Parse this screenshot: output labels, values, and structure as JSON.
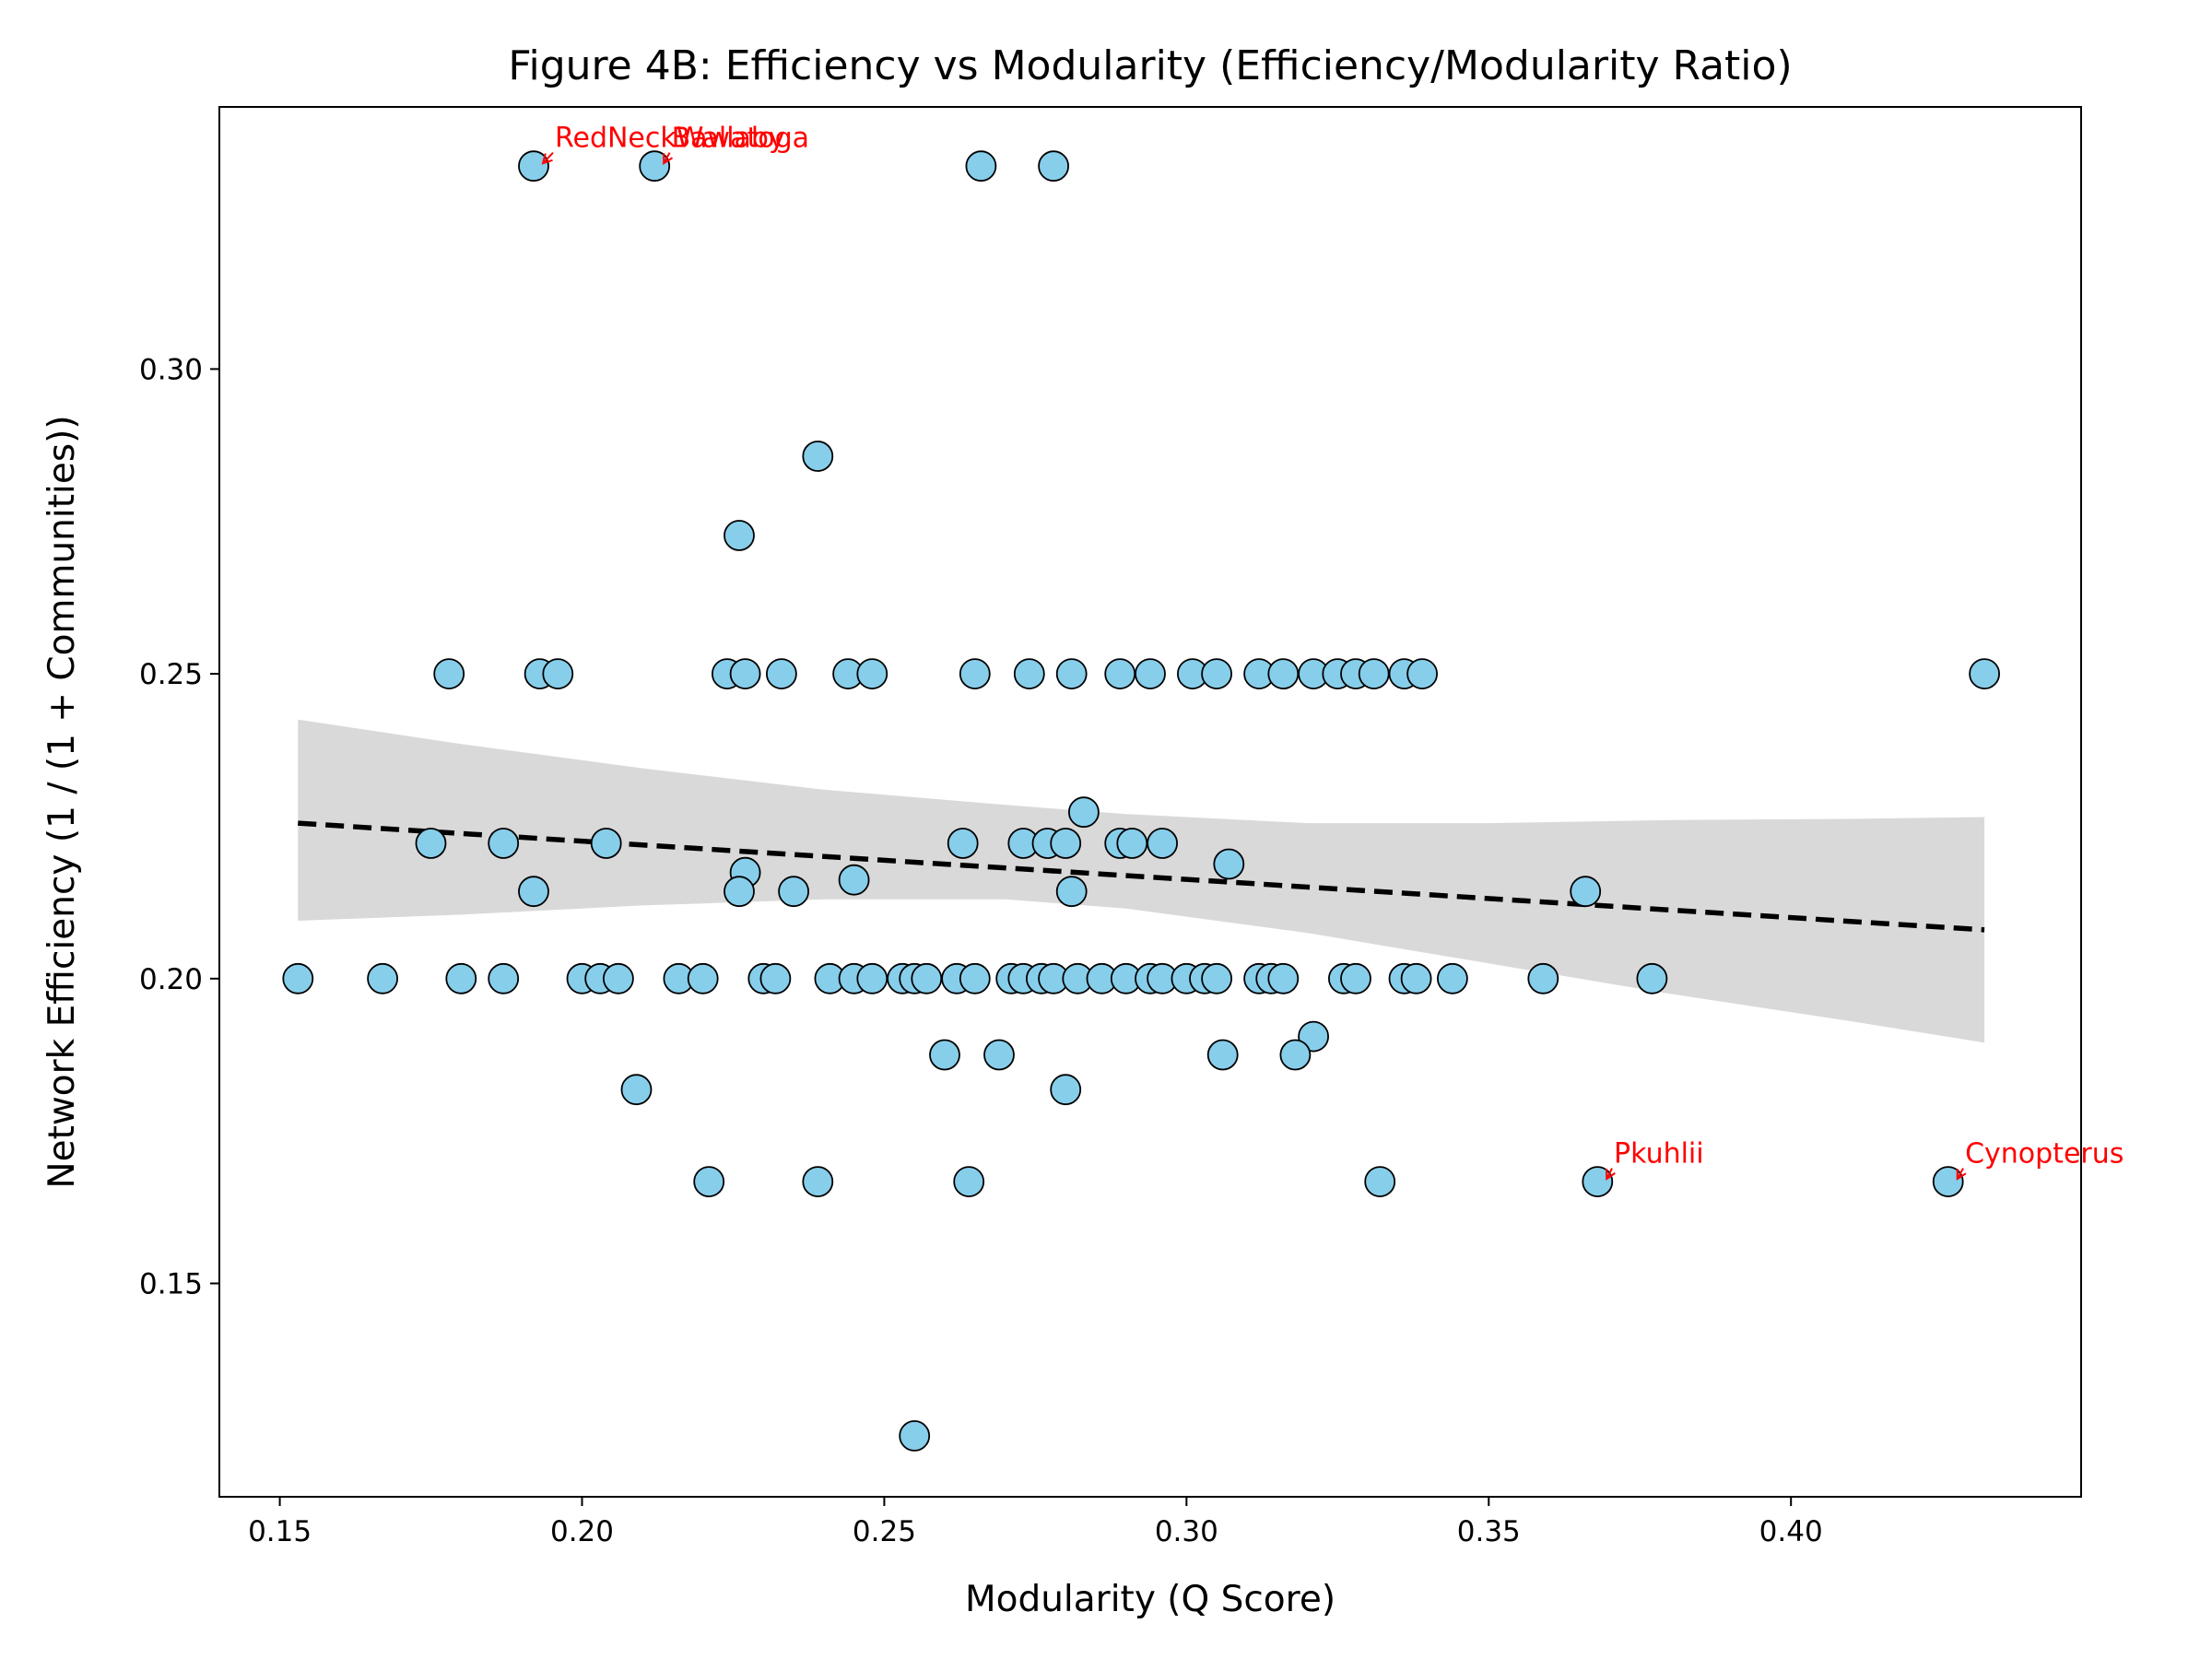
{
  "chart_data": {
    "type": "scatter",
    "title": "Figure 4B: Efficiency vs Modularity (Efficiency/Modularity Ratio)",
    "xlabel": "Modularity (Q Score)",
    "ylabel": "Network Efficiency (1 / (1 + Communities))",
    "xlim": [
      0.14,
      0.448
    ],
    "ylim": [
      0.115,
      0.343
    ],
    "xticks": [
      0.15,
      0.2,
      0.25,
      0.3,
      0.35,
      0.4
    ],
    "xtick_labels": [
      "0.15",
      "0.20",
      "0.25",
      "0.30",
      "0.35",
      "0.40"
    ],
    "yticks": [
      0.15,
      0.2,
      0.25,
      0.3
    ],
    "ytick_labels": [
      "0.15",
      "0.20",
      "0.25",
      "0.30"
    ],
    "grid": false,
    "colors": {
      "point_fill": "#87CEEB",
      "point_edge": "#000000",
      "trend_line": "#000000",
      "confidence_band": "#d9d9d9",
      "annotation": "#ff0000"
    },
    "points": [
      {
        "x": 0.192,
        "y": 0.3333
      },
      {
        "x": 0.212,
        "y": 0.3333
      },
      {
        "x": 0.266,
        "y": 0.3333
      },
      {
        "x": 0.278,
        "y": 0.3333
      },
      {
        "x": 0.239,
        "y": 0.2857
      },
      {
        "x": 0.226,
        "y": 0.2727
      },
      {
        "x": 0.178,
        "y": 0.25
      },
      {
        "x": 0.193,
        "y": 0.25
      },
      {
        "x": 0.196,
        "y": 0.25
      },
      {
        "x": 0.224,
        "y": 0.25
      },
      {
        "x": 0.227,
        "y": 0.25
      },
      {
        "x": 0.233,
        "y": 0.25
      },
      {
        "x": 0.244,
        "y": 0.25
      },
      {
        "x": 0.248,
        "y": 0.25
      },
      {
        "x": 0.265,
        "y": 0.25
      },
      {
        "x": 0.274,
        "y": 0.25
      },
      {
        "x": 0.281,
        "y": 0.25
      },
      {
        "x": 0.289,
        "y": 0.25
      },
      {
        "x": 0.294,
        "y": 0.25
      },
      {
        "x": 0.301,
        "y": 0.25
      },
      {
        "x": 0.305,
        "y": 0.25
      },
      {
        "x": 0.312,
        "y": 0.25
      },
      {
        "x": 0.316,
        "y": 0.25
      },
      {
        "x": 0.321,
        "y": 0.25
      },
      {
        "x": 0.325,
        "y": 0.25
      },
      {
        "x": 0.328,
        "y": 0.25
      },
      {
        "x": 0.331,
        "y": 0.25
      },
      {
        "x": 0.336,
        "y": 0.25
      },
      {
        "x": 0.339,
        "y": 0.25
      },
      {
        "x": 0.432,
        "y": 0.25
      },
      {
        "x": 0.283,
        "y": 0.2273
      },
      {
        "x": 0.175,
        "y": 0.2222
      },
      {
        "x": 0.187,
        "y": 0.2222
      },
      {
        "x": 0.204,
        "y": 0.2222
      },
      {
        "x": 0.263,
        "y": 0.2222
      },
      {
        "x": 0.273,
        "y": 0.2222
      },
      {
        "x": 0.277,
        "y": 0.2222
      },
      {
        "x": 0.28,
        "y": 0.2222
      },
      {
        "x": 0.289,
        "y": 0.2222
      },
      {
        "x": 0.291,
        "y": 0.2222
      },
      {
        "x": 0.296,
        "y": 0.2222
      },
      {
        "x": 0.227,
        "y": 0.2174
      },
      {
        "x": 0.245,
        "y": 0.2162
      },
      {
        "x": 0.307,
        "y": 0.2188
      },
      {
        "x": 0.192,
        "y": 0.2143
      },
      {
        "x": 0.226,
        "y": 0.2143
      },
      {
        "x": 0.235,
        "y": 0.2143
      },
      {
        "x": 0.281,
        "y": 0.2143
      },
      {
        "x": 0.366,
        "y": 0.2143
      },
      {
        "x": 0.153,
        "y": 0.2
      },
      {
        "x": 0.167,
        "y": 0.2
      },
      {
        "x": 0.18,
        "y": 0.2
      },
      {
        "x": 0.187,
        "y": 0.2
      },
      {
        "x": 0.2,
        "y": 0.2
      },
      {
        "x": 0.203,
        "y": 0.2
      },
      {
        "x": 0.206,
        "y": 0.2
      },
      {
        "x": 0.216,
        "y": 0.2
      },
      {
        "x": 0.22,
        "y": 0.2
      },
      {
        "x": 0.23,
        "y": 0.2
      },
      {
        "x": 0.232,
        "y": 0.2
      },
      {
        "x": 0.241,
        "y": 0.2
      },
      {
        "x": 0.245,
        "y": 0.2
      },
      {
        "x": 0.248,
        "y": 0.2
      },
      {
        "x": 0.253,
        "y": 0.2
      },
      {
        "x": 0.255,
        "y": 0.2
      },
      {
        "x": 0.257,
        "y": 0.2
      },
      {
        "x": 0.262,
        "y": 0.2
      },
      {
        "x": 0.265,
        "y": 0.2
      },
      {
        "x": 0.271,
        "y": 0.2
      },
      {
        "x": 0.273,
        "y": 0.2
      },
      {
        "x": 0.276,
        "y": 0.2
      },
      {
        "x": 0.278,
        "y": 0.2
      },
      {
        "x": 0.282,
        "y": 0.2
      },
      {
        "x": 0.286,
        "y": 0.2
      },
      {
        "x": 0.29,
        "y": 0.2
      },
      {
        "x": 0.294,
        "y": 0.2
      },
      {
        "x": 0.296,
        "y": 0.2
      },
      {
        "x": 0.3,
        "y": 0.2
      },
      {
        "x": 0.303,
        "y": 0.2
      },
      {
        "x": 0.305,
        "y": 0.2
      },
      {
        "x": 0.312,
        "y": 0.2
      },
      {
        "x": 0.314,
        "y": 0.2
      },
      {
        "x": 0.316,
        "y": 0.2
      },
      {
        "x": 0.326,
        "y": 0.2
      },
      {
        "x": 0.328,
        "y": 0.2
      },
      {
        "x": 0.336,
        "y": 0.2
      },
      {
        "x": 0.338,
        "y": 0.2
      },
      {
        "x": 0.344,
        "y": 0.2
      },
      {
        "x": 0.359,
        "y": 0.2
      },
      {
        "x": 0.377,
        "y": 0.2
      },
      {
        "x": 0.321,
        "y": 0.1905
      },
      {
        "x": 0.26,
        "y": 0.1875
      },
      {
        "x": 0.269,
        "y": 0.1875
      },
      {
        "x": 0.306,
        "y": 0.1875
      },
      {
        "x": 0.318,
        "y": 0.1875
      },
      {
        "x": 0.209,
        "y": 0.1818
      },
      {
        "x": 0.28,
        "y": 0.1818
      },
      {
        "x": 0.221,
        "y": 0.1667
      },
      {
        "x": 0.239,
        "y": 0.1667
      },
      {
        "x": 0.264,
        "y": 0.1667
      },
      {
        "x": 0.332,
        "y": 0.1667
      },
      {
        "x": 0.368,
        "y": 0.1667
      },
      {
        "x": 0.426,
        "y": 0.1667
      },
      {
        "x": 0.255,
        "y": 0.125
      }
    ],
    "trend_line": {
      "style": "dashed",
      "x": [
        0.153,
        0.432
      ],
      "y": [
        0.2255,
        0.208
      ]
    },
    "confidence_band": {
      "x": [
        0.153,
        0.18,
        0.21,
        0.24,
        0.27,
        0.29,
        0.32,
        0.35,
        0.38,
        0.41,
        0.432
      ],
      "upper": [
        0.2425,
        0.2385,
        0.2345,
        0.231,
        0.2285,
        0.227,
        0.2255,
        0.2255,
        0.226,
        0.2262,
        0.2265
      ],
      "lower": [
        0.2095,
        0.2105,
        0.212,
        0.213,
        0.213,
        0.2115,
        0.2075,
        0.2025,
        0.1975,
        0.193,
        0.1895
      ]
    },
    "annotations": [
      {
        "text": "RedNeckWallaby",
        "x": 0.192,
        "y": 0.3333,
        "text_x": 0.1955,
        "text_y": 0.3364
      },
      {
        "text": "Bawatoga",
        "x": 0.212,
        "y": 0.3333,
        "text_x": 0.2148,
        "text_y": 0.3364
      },
      {
        "text": "Pkuhlii",
        "x": 0.368,
        "y": 0.1667,
        "text_x": 0.3707,
        "text_y": 0.1698
      },
      {
        "text": "Cynopterus",
        "x": 0.426,
        "y": 0.1667,
        "text_x": 0.4288,
        "text_y": 0.1698
      }
    ]
  }
}
